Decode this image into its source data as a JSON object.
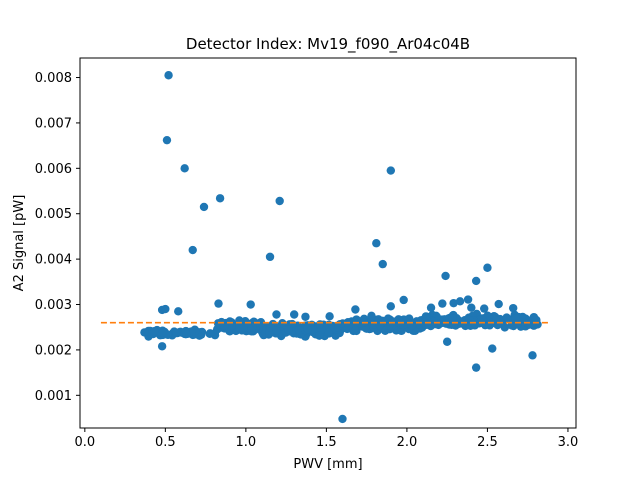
{
  "chart_data": {
    "type": "scatter",
    "title": "Detector Index: Mv19_f090_Ar04c04B",
    "xlabel": "PWV [mm]",
    "ylabel": "A2 Signal [pW]",
    "xlim": [
      -0.03,
      3.05
    ],
    "ylim": [
      0.00028,
      0.00843
    ],
    "grid": false,
    "xticks": [
      0.0,
      0.5,
      1.0,
      1.5,
      2.0,
      2.5,
      3.0
    ],
    "xtick_labels": [
      "0.0",
      "0.5",
      "1.0",
      "1.5",
      "2.0",
      "2.5",
      "3.0"
    ],
    "yticks": [
      0.001,
      0.002,
      0.003,
      0.004,
      0.005,
      0.006,
      0.007,
      0.008
    ],
    "ytick_labels": [
      "0.001",
      "0.002",
      "0.003",
      "0.004",
      "0.005",
      "0.006",
      "0.007",
      "0.008"
    ],
    "colors": {
      "scatter": "#1f77b4",
      "fit_line": "#ff7f0e",
      "axes": "#000000",
      "background": "#ffffff"
    },
    "fit_line": {
      "style": "dashed",
      "x": [
        0.1,
        2.88
      ],
      "y": [
        0.0026,
        0.0026
      ]
    },
    "outliers": {
      "x": [
        0.52,
        0.51,
        0.62,
        0.74,
        0.84,
        0.67,
        1.21,
        1.15,
        1.81,
        1.85,
        1.9,
        2.24,
        2.5,
        2.43,
        2.25,
        2.53,
        2.43,
        2.78,
        1.6,
        0.48,
        0.58
      ],
      "y": [
        0.00805,
        0.00662,
        0.006,
        0.00515,
        0.00534,
        0.0042,
        0.00528,
        0.00405,
        0.00435,
        0.00389,
        0.00595,
        0.00363,
        0.00381,
        0.00352,
        0.00218,
        0.00203,
        0.00161,
        0.00188,
        0.00048,
        0.00208,
        0.00285
      ]
    },
    "band": {
      "description": "dense cluster of ~700 measurements",
      "segments": [
        {
          "x_range": [
            0.35,
            0.82
          ],
          "y_center": 0.00237,
          "y_spread": 0.0001,
          "count": 60
        },
        {
          "x_range": [
            0.82,
            1.1
          ],
          "y_center": 0.00252,
          "y_spread": 0.00016,
          "count": 90
        },
        {
          "x_range": [
            1.1,
            1.6
          ],
          "y_center": 0.00245,
          "y_spread": 0.00018,
          "count": 220
        },
        {
          "x_range": [
            1.6,
            2.1
          ],
          "y_center": 0.00255,
          "y_spread": 0.00018,
          "count": 170
        },
        {
          "x_range": [
            2.1,
            2.82
          ],
          "y_center": 0.00262,
          "y_spread": 0.0002,
          "count": 180
        }
      ],
      "upper_scatter": {
        "x": [
          0.48,
          0.5,
          0.83,
          1.03,
          1.19,
          1.3,
          1.37,
          1.52,
          1.68,
          1.78,
          1.9,
          1.98,
          2.15,
          2.22,
          2.29,
          2.33,
          2.38,
          2.4,
          2.48,
          2.57,
          2.66
        ],
        "y": [
          0.00288,
          0.0029,
          0.00302,
          0.003,
          0.00278,
          0.00278,
          0.00273,
          0.00274,
          0.00289,
          0.00275,
          0.00296,
          0.0031,
          0.00293,
          0.00302,
          0.00303,
          0.00307,
          0.00311,
          0.00293,
          0.00291,
          0.00301,
          0.00292
        ]
      }
    }
  }
}
